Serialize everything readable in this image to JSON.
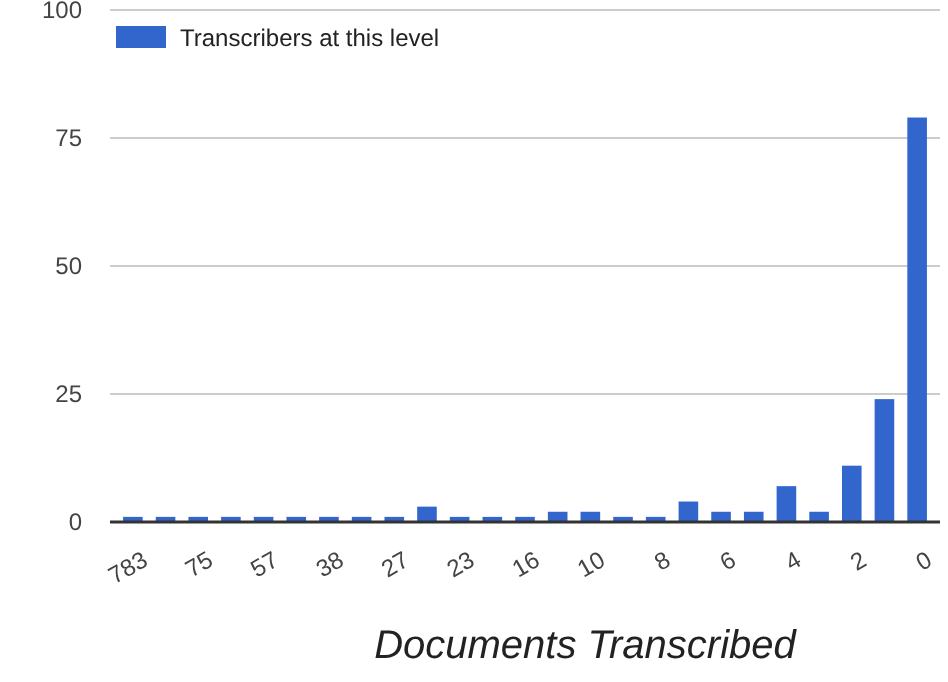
{
  "chart_data": {
    "type": "bar",
    "xlabel": "Documents Transcribed",
    "categories": [
      "783",
      null,
      "75",
      null,
      "57",
      null,
      "38",
      null,
      "27",
      null,
      "23",
      null,
      "16",
      null,
      "10",
      null,
      "8",
      null,
      "6",
      null,
      "4",
      null,
      "2",
      null,
      "0"
    ],
    "series": [
      {
        "name": "Transcribers at this level",
        "color": "#3366cc",
        "values": [
          1,
          1,
          1,
          1,
          1,
          1,
          1,
          1,
          1,
          3,
          1,
          1,
          1,
          2,
          2,
          1,
          1,
          4,
          2,
          2,
          7,
          2,
          11,
          24,
          79
        ]
      }
    ],
    "ylim": [
      0,
      100
    ],
    "yticks": [
      0,
      25,
      50,
      75,
      100
    ],
    "grid": "y",
    "legend": "top left"
  }
}
